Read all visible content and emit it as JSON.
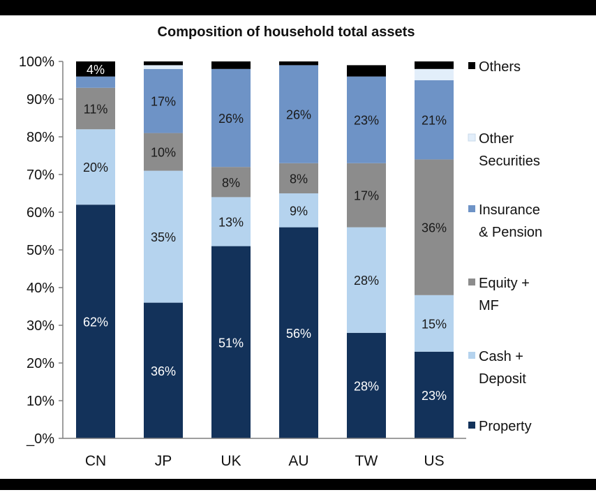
{
  "chart_data": {
    "type": "bar",
    "stacked": true,
    "title": "Composition of household total assets",
    "xlabel": "",
    "ylabel": "",
    "ylim": [
      0,
      100
    ],
    "y_ticks": [
      "_0%",
      "10%",
      "20%",
      "30%",
      "40%",
      "50%",
      "60%",
      "70%",
      "80%",
      "90%",
      "100%"
    ],
    "categories": [
      "CN",
      "JP",
      "UK",
      "AU",
      "TW",
      "US"
    ],
    "legend_position": "right",
    "grid": false,
    "series": [
      {
        "name": "Property",
        "color": "#13325a",
        "values": [
          62,
          36,
          51,
          56,
          28,
          23
        ],
        "labels": [
          "62%",
          "36%",
          "51%",
          "56%",
          "28%",
          "23%"
        ]
      },
      {
        "name": "Cash + Deposit",
        "color": "#b5d3ee",
        "values": [
          20,
          35,
          13,
          9,
          28,
          15
        ],
        "labels": [
          "20%",
          "35%",
          "13%",
          "9%",
          "28%",
          "15%"
        ]
      },
      {
        "name": "Equity + MF",
        "color": "#8c8c8c",
        "values": [
          11,
          10,
          8,
          8,
          17,
          36
        ],
        "labels": [
          "11%",
          "10%",
          "8%",
          "8%",
          "17%",
          "36%"
        ]
      },
      {
        "name": "Insurance & Pension",
        "color": "#6e93c6",
        "values": [
          3,
          17,
          26,
          26,
          23,
          21
        ],
        "labels": [
          "",
          "17%",
          "26%",
          "26%",
          "23%",
          "21%"
        ]
      },
      {
        "name": "Other Securities",
        "color": "#e2eefa",
        "values": [
          0,
          1,
          0,
          0,
          0,
          3
        ],
        "labels": [
          "",
          "",
          "",
          "",
          "",
          ""
        ]
      },
      {
        "name": "Others",
        "color": "#000000",
        "values": [
          4,
          1,
          2,
          1,
          3,
          2
        ],
        "labels": [
          "4%",
          "",
          "",
          "",
          "",
          ""
        ]
      }
    ],
    "legend": [
      {
        "series": "Others",
        "lines": [
          "Others"
        ]
      },
      {
        "series": "Other Securities",
        "lines": [
          "Other",
          "Securities"
        ]
      },
      {
        "series": "Insurance & Pension",
        "lines": [
          "Insurance",
          "& Pension"
        ]
      },
      {
        "series": "Equity + MF",
        "lines": [
          "Equity +",
          "MF"
        ]
      },
      {
        "series": "Cash + Deposit",
        "lines": [
          "Cash +",
          "Deposit"
        ]
      },
      {
        "series": "Property",
        "lines": [
          "Property"
        ]
      }
    ]
  }
}
